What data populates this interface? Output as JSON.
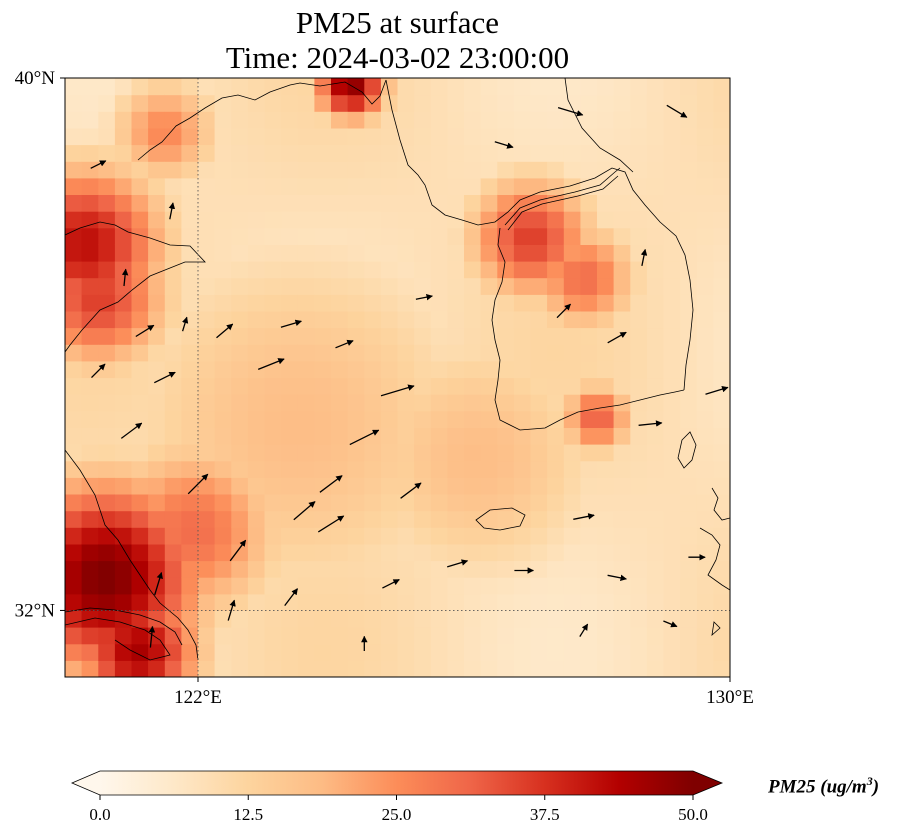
{
  "title_line1": "PM25 at surface",
  "title_line2": "Time: 2024-03-02 23:00:00",
  "map": {
    "lon_range": [
      120.0,
      130.0
    ],
    "lat_range": [
      31.0,
      40.0
    ],
    "lon_ticks": [
      {
        "value": 122,
        "label": "122°E"
      },
      {
        "value": 130,
        "label": "130°E"
      }
    ],
    "lat_ticks": [
      {
        "value": 40,
        "label": "40°N"
      },
      {
        "value": 32,
        "label": "32°N"
      }
    ],
    "gridlines": {
      "lon": [
        122
      ],
      "lat": [
        32
      ],
      "style": "dotted"
    },
    "field": "PM25",
    "colormap": "OrRd",
    "hotspots": [
      {
        "lon": 120.6,
        "lat": 32.5,
        "value": 50,
        "spread": 1.1
      },
      {
        "lon": 121.1,
        "lat": 31.4,
        "value": 45,
        "spread": 0.7
      },
      {
        "lon": 121.9,
        "lat": 33.2,
        "value": 30,
        "spread": 1.0
      },
      {
        "lon": 120.3,
        "lat": 37.5,
        "value": 42,
        "spread": 0.9
      },
      {
        "lon": 120.5,
        "lat": 36.7,
        "value": 36,
        "spread": 0.8
      },
      {
        "lon": 121.5,
        "lat": 39.2,
        "value": 26,
        "spread": 0.6
      },
      {
        "lon": 124.3,
        "lat": 39.9,
        "value": 48,
        "spread": 0.4
      },
      {
        "lon": 127.0,
        "lat": 37.6,
        "value": 36,
        "spread": 0.7
      },
      {
        "lon": 127.8,
        "lat": 37.0,
        "value": 30,
        "spread": 0.6
      },
      {
        "lon": 128.0,
        "lat": 34.9,
        "value": 32,
        "spread": 0.4
      },
      {
        "lon": 126.2,
        "lat": 34.3,
        "value": 18,
        "spread": 1.5
      },
      {
        "lon": 123.5,
        "lat": 34.8,
        "value": 18,
        "spread": 2.2
      }
    ],
    "background_value": 9
  },
  "wind_vectors": [
    {
      "lon": 125.0,
      "lat": 35.3,
      "u": 1.0,
      "v": 0.3,
      "speed": 1.2
    },
    {
      "lon": 124.5,
      "lat": 34.6,
      "u": 1.0,
      "v": 0.5,
      "speed": 1.1
    },
    {
      "lon": 123.1,
      "lat": 35.7,
      "u": 1.0,
      "v": 0.4,
      "speed": 0.9
    },
    {
      "lon": 122.0,
      "lat": 33.9,
      "u": 0.7,
      "v": 0.7,
      "speed": 0.9
    },
    {
      "lon": 122.6,
      "lat": 32.9,
      "u": 0.6,
      "v": 0.8,
      "speed": 0.8
    },
    {
      "lon": 121.0,
      "lat": 34.7,
      "u": 0.8,
      "v": 0.6,
      "speed": 0.8
    },
    {
      "lon": 123.6,
      "lat": 33.5,
      "u": 0.7,
      "v": 0.6,
      "speed": 0.9
    },
    {
      "lon": 124.0,
      "lat": 33.3,
      "u": 0.8,
      "v": 0.5,
      "speed": 1.0
    },
    {
      "lon": 125.2,
      "lat": 33.8,
      "u": 0.8,
      "v": 0.6,
      "speed": 0.8
    },
    {
      "lon": 127.5,
      "lat": 36.5,
      "u": 0.3,
      "v": 0.3,
      "speed": 0.5
    },
    {
      "lon": 128.3,
      "lat": 36.1,
      "u": 0.7,
      "v": 0.4,
      "speed": 0.6
    },
    {
      "lon": 129.8,
      "lat": 35.3,
      "u": 1.0,
      "v": 0.3,
      "speed": 0.7
    },
    {
      "lon": 128.8,
      "lat": 34.8,
      "u": 1.0,
      "v": 0.1,
      "speed": 0.7
    },
    {
      "lon": 127.8,
      "lat": 33.4,
      "u": 1.0,
      "v": 0.2,
      "speed": 0.6
    },
    {
      "lon": 123.4,
      "lat": 36.3,
      "u": 1.0,
      "v": 0.3,
      "speed": 0.6
    },
    {
      "lon": 122.4,
      "lat": 36.2,
      "u": 0.6,
      "v": 0.5,
      "speed": 0.6
    },
    {
      "lon": 121.5,
      "lat": 35.5,
      "u": 0.8,
      "v": 0.4,
      "speed": 0.7
    },
    {
      "lon": 121.2,
      "lat": 36.2,
      "u": 0.8,
      "v": 0.5,
      "speed": 0.6
    },
    {
      "lon": 120.5,
      "lat": 35.6,
      "u": 0.6,
      "v": 0.6,
      "speed": 0.5
    },
    {
      "lon": 121.4,
      "lat": 32.4,
      "u": 0.3,
      "v": 1.0,
      "speed": 0.7
    },
    {
      "lon": 122.5,
      "lat": 32.0,
      "u": 0.3,
      "v": 1.0,
      "speed": 0.6
    },
    {
      "lon": 123.4,
      "lat": 32.2,
      "u": 0.6,
      "v": 0.8,
      "speed": 0.6
    },
    {
      "lon": 124.0,
      "lat": 33.9,
      "u": 0.8,
      "v": 0.6,
      "speed": 0.9
    },
    {
      "lon": 124.9,
      "lat": 32.4,
      "u": 1.0,
      "v": 0.5,
      "speed": 0.5
    },
    {
      "lon": 125.9,
      "lat": 32.7,
      "u": 1.0,
      "v": 0.3,
      "speed": 0.6
    },
    {
      "lon": 126.9,
      "lat": 32.6,
      "u": 1.0,
      "v": 0.0,
      "speed": 0.5
    },
    {
      "lon": 128.3,
      "lat": 32.5,
      "u": 1.0,
      "v": -0.2,
      "speed": 0.5
    },
    {
      "lon": 129.5,
      "lat": 32.8,
      "u": 1.0,
      "v": 0.0,
      "speed": 0.4
    },
    {
      "lon": 127.6,
      "lat": 39.5,
      "u": 1.0,
      "v": -0.3,
      "speed": 0.8
    },
    {
      "lon": 129.2,
      "lat": 39.5,
      "u": 1.0,
      "v": -0.6,
      "speed": 0.7
    },
    {
      "lon": 126.6,
      "lat": 39.0,
      "u": 1.0,
      "v": -0.3,
      "speed": 0.5
    },
    {
      "lon": 120.5,
      "lat": 38.7,
      "u": 1.0,
      "v": 0.5,
      "speed": 0.4
    },
    {
      "lon": 121.6,
      "lat": 38.0,
      "u": 0.2,
      "v": 1.0,
      "speed": 0.4
    },
    {
      "lon": 120.9,
      "lat": 37.0,
      "u": 0.1,
      "v": 1.0,
      "speed": 0.4
    },
    {
      "lon": 121.8,
      "lat": 36.3,
      "u": 0.3,
      "v": 1.0,
      "speed": 0.3
    },
    {
      "lon": 124.2,
      "lat": 36.0,
      "u": 1.0,
      "v": 0.4,
      "speed": 0.5
    },
    {
      "lon": 125.4,
      "lat": 36.7,
      "u": 1.0,
      "v": 0.2,
      "speed": 0.4
    },
    {
      "lon": 128.7,
      "lat": 37.3,
      "u": 0.2,
      "v": 1.0,
      "speed": 0.4
    },
    {
      "lon": 121.3,
      "lat": 31.6,
      "u": 0.1,
      "v": 1.0,
      "speed": 0.6
    },
    {
      "lon": 124.5,
      "lat": 31.5,
      "u": 0.0,
      "v": 1.0,
      "speed": 0.3
    },
    {
      "lon": 127.8,
      "lat": 31.7,
      "u": 0.5,
      "v": 0.8,
      "speed": 0.3
    },
    {
      "lon": 129.1,
      "lat": 31.8,
      "u": 1.0,
      "v": -0.4,
      "speed": 0.3
    }
  ],
  "colorbar": {
    "min": 0.0,
    "max": 50.0,
    "ticks": [
      "0.0",
      "12.5",
      "25.0",
      "37.5",
      "50.0"
    ],
    "tick_values": [
      0,
      12.5,
      25,
      37.5,
      50
    ],
    "extend": "both",
    "stops": [
      "#fff7ec",
      "#fee8c8",
      "#fdd49e",
      "#fdbb84",
      "#fc8d59",
      "#ef6548",
      "#d7301f",
      "#b30000",
      "#7f0000"
    ],
    "label": "PM25 (ug/m"
  },
  "colorbar_label_exp": "3",
  "colorbar_label_close": ")"
}
